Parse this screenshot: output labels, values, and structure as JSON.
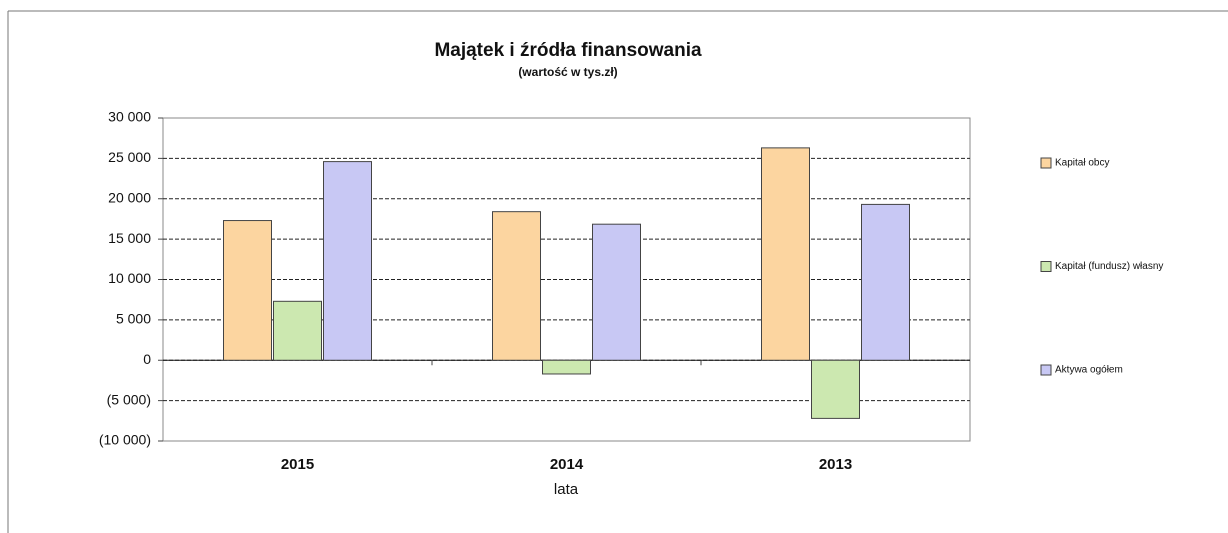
{
  "chart_data": {
    "type": "bar",
    "title": "Majątek i źródła finansowania",
    "subtitle": "(wartość w tys.zł)",
    "x_label": "lata",
    "categories": [
      "2015",
      "2014",
      "2013"
    ],
    "series": [
      {
        "name": "Kapitał obcy",
        "color": "#fcd5a0",
        "values": [
          17300,
          18400,
          26300
        ]
      },
      {
        "name": "Kapitał (fundusz) własny",
        "color": "#cce8b0",
        "values": [
          7300,
          -1700,
          -7200
        ]
      },
      {
        "name": "Aktywa ogółem",
        "color": "#c8c8f4",
        "values": [
          24600,
          16850,
          19300
        ]
      }
    ],
    "ylim": [
      -10000,
      30000
    ],
    "yticks": [
      {
        "value": -10000,
        "label": "(10 000)"
      },
      {
        "value": -5000,
        "label": "(5 000)"
      },
      0,
      {
        "value": 5000,
        "label": "5 000"
      },
      {
        "value": 10000,
        "label": "10 000"
      },
      {
        "value": 15000,
        "label": "15 000"
      },
      {
        "value": 20000,
        "label": "20 000"
      },
      {
        "value": 25000,
        "label": "25 000"
      },
      {
        "value": 30000,
        "label": "30 000"
      }
    ],
    "grid": true,
    "legend": "right"
  }
}
